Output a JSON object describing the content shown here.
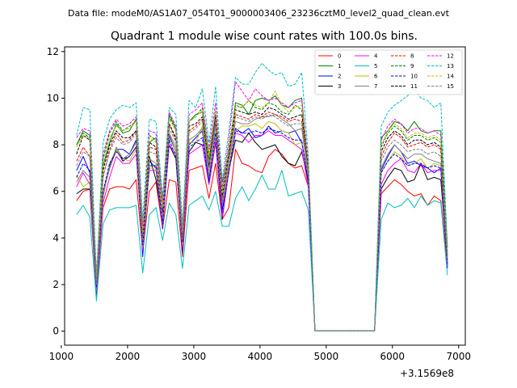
{
  "chart_data": {
    "type": "line",
    "suptitle": "Data file: modeM0/AS1A07_054T01_9000003406_23236cztM0_level2_quad_clean.evt",
    "title": "Quadrant 1 module wise count rates with 100.0s bins.",
    "xlabel": "",
    "ylabel": "",
    "x_offset_label": "+3.1569e8",
    "xlim": [
      1050,
      7100
    ],
    "ylim": [
      -0.6,
      12.2
    ],
    "x_ticks": [
      1000,
      2000,
      3000,
      4000,
      5000,
      6000,
      7000
    ],
    "x_tick_labels": [
      "1000",
      "2000",
      "3000",
      "4000",
      "5000",
      "6000",
      "7000"
    ],
    "y_ticks": [
      0,
      2,
      4,
      6,
      8,
      10,
      12
    ],
    "y_tick_labels": [
      "0",
      "2",
      "4",
      "6",
      "8",
      "10",
      "12"
    ],
    "legend_location": "top-right",
    "x": [
      1230,
      1330,
      1430,
      1530,
      1630,
      1730,
      1830,
      1930,
      2030,
      2130,
      2230,
      2330,
      2430,
      2530,
      2630,
      2730,
      2830,
      2930,
      3030,
      3130,
      3230,
      3330,
      3430,
      3530,
      3630,
      3730,
      3830,
      3930,
      4030,
      4130,
      4230,
      4330,
      4430,
      4530,
      4630,
      4730,
      4830,
      4930,
      5030,
      5130,
      5230,
      5330,
      5430,
      5530,
      5630,
      5730,
      5830,
      5930,
      6030,
      6130,
      6230,
      6330,
      6430,
      6530,
      6630,
      6730,
      6830
    ],
    "series": [
      {
        "name": "0",
        "color": "#ff0000",
        "dash": "solid",
        "values": [
          5.6,
          6.0,
          6.1,
          1.5,
          5.3,
          6.1,
          6.2,
          6.2,
          6.1,
          6.5,
          3.4,
          6.0,
          6.4,
          4.4,
          6.5,
          6.4,
          3.2,
          6.9,
          7.0,
          7.1,
          5.7,
          7.2,
          4.8,
          5.3,
          7.8,
          7.2,
          7.1,
          6.9,
          6.8,
          7.5,
          7.8,
          7.6,
          7.2,
          7.0,
          7.1,
          6.2,
          0.02,
          0.02,
          0.02,
          0.02,
          0.02,
          0.02,
          0.02,
          0.02,
          0.02,
          0.02,
          5.9,
          6.2,
          6.5,
          6.3,
          6.0,
          5.8,
          5.9,
          5.4,
          5.8,
          5.6,
          2.8
        ]
      },
      {
        "name": "1",
        "color": "#008000",
        "dash": "solid",
        "values": [
          8.0,
          8.6,
          8.4,
          2.1,
          7.1,
          8.1,
          8.9,
          8.5,
          8.6,
          9.1,
          4.2,
          8.1,
          8.3,
          5.5,
          9.3,
          8.7,
          4.0,
          9.0,
          9.3,
          9.4,
          7.4,
          9.2,
          6.4,
          7.6,
          9.8,
          9.7,
          9.3,
          9.9,
          10.0,
          9.9,
          10.1,
          9.7,
          9.6,
          9.9,
          10.0,
          7.0,
          0.02,
          0.02,
          0.02,
          0.02,
          0.02,
          0.02,
          0.02,
          0.02,
          0.02,
          0.02,
          8.3,
          8.6,
          9.0,
          8.9,
          8.6,
          9.0,
          8.6,
          8.5,
          8.6,
          8.6,
          3.6
        ]
      },
      {
        "name": "2",
        "color": "#0000ff",
        "dash": "solid",
        "values": [
          6.9,
          7.5,
          6.8,
          1.6,
          5.9,
          7.1,
          7.8,
          7.8,
          7.6,
          8.2,
          3.2,
          7.3,
          7.0,
          4.4,
          8.4,
          7.7,
          3.4,
          8.0,
          8.3,
          8.6,
          6.4,
          8.9,
          5.2,
          6.8,
          8.7,
          8.5,
          8.7,
          8.3,
          8.4,
          8.8,
          8.5,
          8.6,
          8.5,
          8.6,
          8.1,
          6.4,
          0.02,
          0.02,
          0.02,
          0.02,
          0.02,
          0.02,
          0.02,
          0.02,
          0.02,
          0.02,
          6.9,
          7.5,
          8.0,
          7.7,
          7.2,
          7.3,
          7.1,
          7.0,
          6.8,
          7.0,
          2.7
        ]
      },
      {
        "name": "3",
        "color": "#000000",
        "dash": "solid",
        "values": [
          5.9,
          6.1,
          6.1,
          1.8,
          5.9,
          7.0,
          7.8,
          7.3,
          7.5,
          7.9,
          3.7,
          7.5,
          6.5,
          4.7,
          8.0,
          7.4,
          3.6,
          7.7,
          8.1,
          8.0,
          6.3,
          8.1,
          4.8,
          6.9,
          8.2,
          8.1,
          8.5,
          8.1,
          7.8,
          7.9,
          8.0,
          7.5,
          7.2,
          7.1,
          7.7,
          6.4,
          0.02,
          0.02,
          0.02,
          0.02,
          0.02,
          0.02,
          0.02,
          0.02,
          0.02,
          0.02,
          6.1,
          6.6,
          7.0,
          6.9,
          6.4,
          6.5,
          7.2,
          6.5,
          6.6,
          6.5,
          2.9
        ]
      },
      {
        "name": "4",
        "color": "#ff00ff",
        "dash": "solid",
        "values": [
          6.2,
          6.8,
          6.3,
          1.7,
          5.5,
          6.6,
          7.5,
          7.2,
          7.2,
          7.6,
          3.5,
          6.9,
          6.9,
          4.5,
          8.0,
          7.6,
          3.6,
          7.6,
          7.8,
          8.0,
          6.3,
          8.2,
          4.9,
          6.9,
          8.5,
          8.4,
          8.1,
          8.4,
          8.4,
          8.6,
          8.4,
          8.4,
          8.2,
          8.0,
          7.8,
          6.2,
          0.02,
          0.02,
          0.02,
          0.02,
          0.02,
          0.02,
          0.02,
          0.02,
          0.02,
          0.02,
          6.3,
          6.9,
          7.2,
          7.4,
          6.9,
          6.8,
          7.2,
          6.8,
          6.9,
          6.9,
          2.8
        ]
      },
      {
        "name": "5",
        "color": "#00bfbf",
        "dash": "solid",
        "values": [
          5.0,
          5.4,
          4.9,
          1.3,
          4.6,
          5.2,
          5.3,
          5.3,
          5.3,
          5.4,
          2.5,
          5.0,
          5.3,
          3.9,
          5.5,
          5.0,
          2.7,
          5.4,
          5.6,
          5.8,
          5.2,
          6.0,
          4.5,
          4.5,
          5.7,
          6.2,
          5.6,
          6.1,
          6.7,
          6.1,
          6.1,
          6.9,
          5.8,
          5.9,
          6.0,
          5.2,
          0.02,
          0.02,
          0.02,
          0.02,
          0.02,
          0.02,
          0.02,
          0.02,
          0.02,
          0.02,
          4.8,
          5.5,
          5.3,
          5.4,
          5.7,
          5.3,
          5.8,
          5.4,
          5.6,
          5.5,
          2.4
        ]
      },
      {
        "name": "6",
        "color": "#bfbf00",
        "dash": "solid",
        "values": [
          6.7,
          6.2,
          6.4,
          2.0,
          5.7,
          7.2,
          7.8,
          7.4,
          7.3,
          7.8,
          3.6,
          7.0,
          7.0,
          4.6,
          8.3,
          7.7,
          3.7,
          8.1,
          8.1,
          8.8,
          6.7,
          8.5,
          5.5,
          7.0,
          8.6,
          8.8,
          8.8,
          8.9,
          8.7,
          9.0,
          8.9,
          8.6,
          8.5,
          8.0,
          8.1,
          6.6,
          0.02,
          0.02,
          0.02,
          0.02,
          0.02,
          0.02,
          0.02,
          0.02,
          0.02,
          0.02,
          6.8,
          7.3,
          7.7,
          7.5,
          7.1,
          7.2,
          7.4,
          7.0,
          7.2,
          7.1,
          2.9
        ]
      },
      {
        "name": "7",
        "color": "#808080",
        "dash": "solid",
        "values": [
          6.4,
          6.9,
          6.6,
          1.8,
          5.9,
          7.0,
          7.9,
          7.4,
          7.6,
          8.1,
          3.8,
          7.4,
          7.2,
          4.7,
          8.5,
          7.9,
          3.9,
          8.2,
          8.4,
          8.7,
          6.6,
          8.8,
          5.4,
          7.2,
          9.0,
          8.9,
          8.9,
          9.1,
          9.2,
          9.2,
          9.3,
          9.1,
          8.9,
          8.6,
          8.7,
          6.6,
          0.02,
          0.02,
          0.02,
          0.02,
          0.02,
          0.02,
          0.02,
          0.02,
          0.02,
          0.02,
          7.0,
          7.6,
          8.0,
          7.7,
          7.4,
          7.6,
          7.6,
          7.4,
          7.3,
          7.2,
          3.0
        ]
      },
      {
        "name": "8",
        "color": "#ff0000",
        "dash": "dashed",
        "values": [
          7.3,
          7.9,
          7.5,
          2.0,
          6.6,
          7.8,
          8.5,
          8.1,
          8.2,
          8.6,
          4.1,
          7.9,
          7.8,
          5.0,
          8.9,
          8.2,
          4.2,
          8.6,
          8.8,
          9.1,
          7.0,
          9.2,
          5.6,
          7.5,
          9.3,
          9.2,
          9.1,
          9.3,
          9.2,
          9.4,
          9.3,
          9.2,
          9.0,
          9.1,
          9.0,
          6.9,
          0.02,
          0.02,
          0.02,
          0.02,
          0.02,
          0.02,
          0.02,
          0.02,
          0.02,
          0.02,
          7.5,
          8.1,
          8.5,
          8.3,
          7.9,
          8.0,
          8.1,
          7.9,
          8.0,
          7.8,
          3.2
        ]
      },
      {
        "name": "9",
        "color": "#008000",
        "dash": "dashed",
        "values": [
          8.0,
          8.5,
          8.3,
          2.2,
          7.4,
          8.5,
          9.0,
          8.6,
          8.8,
          9.0,
          4.3,
          8.4,
          8.2,
          5.3,
          9.2,
          8.6,
          4.2,
          9.0,
          9.2,
          9.6,
          7.6,
          9.5,
          6.0,
          7.9,
          9.7,
          9.6,
          9.9,
          9.6,
          9.5,
          9.8,
          9.7,
          9.4,
          9.3,
          9.7,
          9.5,
          7.1,
          0.02,
          0.02,
          0.02,
          0.02,
          0.02,
          0.02,
          0.02,
          0.02,
          0.02,
          0.02,
          7.9,
          8.5,
          8.8,
          8.6,
          8.2,
          8.4,
          8.4,
          8.2,
          8.3,
          8.1,
          3.3
        ]
      },
      {
        "name": "10",
        "color": "#0000ff",
        "dash": "dashed",
        "values": [
          6.6,
          7.2,
          6.9,
          1.9,
          6.0,
          7.2,
          7.7,
          7.4,
          7.5,
          7.9,
          3.7,
          7.1,
          7.1,
          4.6,
          8.2,
          7.5,
          3.8,
          7.9,
          8.1,
          8.3,
          6.4,
          8.5,
          5.1,
          6.9,
          8.6,
          8.5,
          8.5,
          8.6,
          8.5,
          8.7,
          8.6,
          8.5,
          8.3,
          8.2,
          8.2,
          6.4,
          0.02,
          0.02,
          0.02,
          0.02,
          0.02,
          0.02,
          0.02,
          0.02,
          0.02,
          0.02,
          6.8,
          7.3,
          7.6,
          7.4,
          7.1,
          7.2,
          7.2,
          7.0,
          7.1,
          7.0,
          2.9
        ]
      },
      {
        "name": "11",
        "color": "#000000",
        "dash": "dashed",
        "values": [
          7.6,
          8.4,
          8.2,
          2.1,
          6.9,
          8.0,
          8.6,
          8.3,
          8.3,
          8.6,
          4.0,
          8.1,
          7.9,
          5.1,
          8.9,
          8.3,
          4.1,
          8.8,
          8.9,
          9.2,
          7.1,
          9.3,
          5.8,
          7.6,
          9.5,
          9.4,
          9.3,
          9.4,
          9.3,
          9.6,
          9.5,
          9.3,
          9.1,
          9.2,
          9.3,
          7.0,
          0.02,
          0.02,
          0.02,
          0.02,
          0.02,
          0.02,
          0.02,
          0.02,
          0.02,
          0.02,
          7.7,
          8.3,
          8.6,
          8.4,
          8.0,
          8.2,
          8.2,
          8.0,
          8.1,
          7.9,
          3.2
        ]
      },
      {
        "name": "12",
        "color": "#ff00ff",
        "dash": "dashed",
        "values": [
          8.3,
          8.7,
          8.6,
          2.3,
          7.6,
          8.6,
          9.1,
          8.8,
          8.9,
          9.2,
          4.5,
          8.6,
          8.5,
          5.5,
          9.4,
          8.8,
          4.4,
          9.3,
          9.5,
          9.8,
          7.8,
          9.8,
          6.2,
          8.2,
          10.7,
          10.3,
          9.9,
          10.4,
          10.1,
          9.9,
          10.0,
          9.8,
          9.6,
          9.8,
          9.9,
          7.3,
          0.02,
          0.02,
          0.02,
          0.02,
          0.02,
          0.02,
          0.02,
          0.02,
          0.02,
          0.02,
          8.2,
          8.8,
          9.1,
          8.9,
          8.5,
          8.7,
          8.7,
          8.5,
          8.6,
          8.4,
          3.4
        ]
      },
      {
        "name": "13",
        "color": "#00bfbf",
        "dash": "dashed",
        "values": [
          8.4,
          9.6,
          9.5,
          2.4,
          8.1,
          9.1,
          9.5,
          9.7,
          9.6,
          9.8,
          4.8,
          9.1,
          9.0,
          5.8,
          9.6,
          9.3,
          4.6,
          9.9,
          9.6,
          10.4,
          8.1,
          10.5,
          6.5,
          8.6,
          10.9,
          10.6,
          10.6,
          11.1,
          11.5,
          11.2,
          11.0,
          11.1,
          10.5,
          10.6,
          11.1,
          7.5,
          0.02,
          0.02,
          0.02,
          0.02,
          0.02,
          0.02,
          0.02,
          0.02,
          0.02,
          0.02,
          8.8,
          9.4,
          9.7,
          9.9,
          10.1,
          10.4,
          10.0,
          9.9,
          9.6,
          9.8,
          3.6
        ]
      },
      {
        "name": "14",
        "color": "#bfbf00",
        "dash": "dashed",
        "values": [
          7.9,
          8.4,
          8.3,
          2.2,
          7.3,
          8.3,
          8.8,
          8.6,
          8.7,
          9.0,
          4.2,
          8.3,
          8.1,
          5.3,
          9.1,
          8.6,
          4.2,
          9.0,
          9.2,
          9.5,
          7.5,
          9.5,
          5.9,
          7.8,
          9.6,
          9.6,
          9.9,
          9.7,
          9.6,
          9.8,
          10.3,
          9.7,
          9.4,
          9.6,
          9.7,
          7.1,
          0.02,
          0.02,
          0.02,
          0.02,
          0.02,
          0.02,
          0.02,
          0.02,
          0.02,
          0.02,
          8.0,
          8.6,
          8.9,
          8.7,
          8.3,
          8.5,
          8.5,
          8.3,
          8.4,
          8.2,
          3.3
        ]
      },
      {
        "name": "15",
        "color": "#808080",
        "dash": "dashed",
        "values": [
          7.1,
          7.7,
          7.5,
          2.0,
          6.6,
          7.7,
          8.3,
          8.0,
          8.1,
          8.5,
          3.9,
          7.7,
          7.6,
          4.9,
          8.7,
          8.1,
          4.0,
          8.5,
          8.7,
          9.0,
          6.9,
          9.1,
          5.5,
          7.4,
          9.2,
          9.1,
          9.0,
          9.2,
          9.1,
          9.3,
          9.2,
          9.0,
          8.8,
          8.9,
          8.9,
          6.8,
          0.02,
          0.02,
          0.02,
          0.02,
          0.02,
          0.02,
          0.02,
          0.02,
          0.02,
          0.02,
          7.3,
          7.9,
          8.2,
          8.0,
          7.7,
          7.8,
          7.8,
          7.6,
          7.7,
          7.5,
          3.1
        ]
      }
    ]
  }
}
